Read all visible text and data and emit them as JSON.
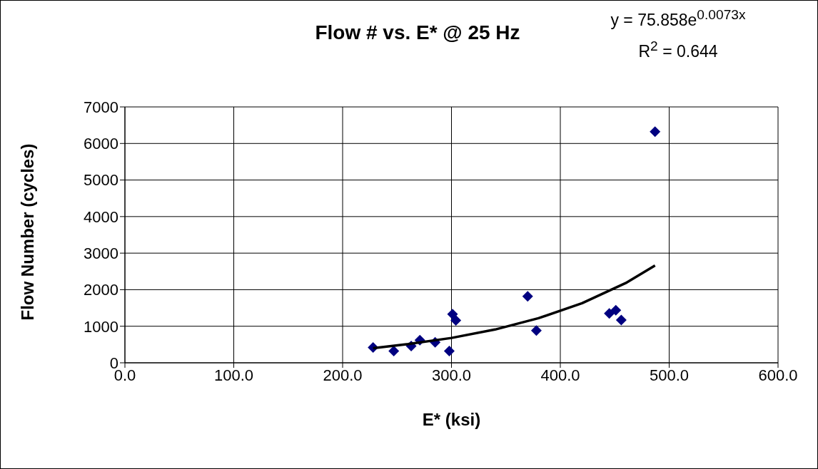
{
  "chart_data": {
    "type": "scatter",
    "title": "Flow # vs. E* @ 25 Hz",
    "xlabel": "E* (ksi)",
    "ylabel": "Flow Number (cycles)",
    "annotations": [
      "y = 75.858e$^{0.0073x}$",
      "R$^{2}$ = 0.644"
    ],
    "xlim": [
      0,
      600
    ],
    "ylim": [
      0,
      7000
    ],
    "xticks": [
      {
        "value": 0,
        "label": "0.0"
      },
      {
        "value": 100,
        "label": "100.0"
      },
      {
        "value": 200,
        "label": "200.0"
      },
      {
        "value": 300,
        "label": "300.0"
      },
      {
        "value": 400,
        "label": "400.0"
      },
      {
        "value": 500,
        "label": "500.0"
      },
      {
        "value": 600,
        "label": "600.0"
      }
    ],
    "yticks": [
      0,
      1000,
      2000,
      3000,
      4000,
      5000,
      6000,
      7000
    ],
    "grid": true,
    "marker": "diamond",
    "series": [
      {
        "color": "#000080",
        "x": [
          228,
          247,
          263,
          271,
          285,
          298,
          301,
          304,
          370,
          378,
          445,
          451,
          456,
          487
        ],
        "values": [
          420,
          320,
          460,
          620,
          560,
          320,
          1330,
          1160,
          1820,
          880,
          1350,
          1440,
          1170,
          6320
        ]
      },
      {
        "type": "line",
        "color": "#000000",
        "marker": "none",
        "x": [
          228,
          260,
          300,
          340,
          380,
          420,
          460,
          487
        ],
        "values": [
          400,
          510,
          680,
          910,
          1220,
          1630,
          2180,
          2660
        ]
      }
    ]
  }
}
